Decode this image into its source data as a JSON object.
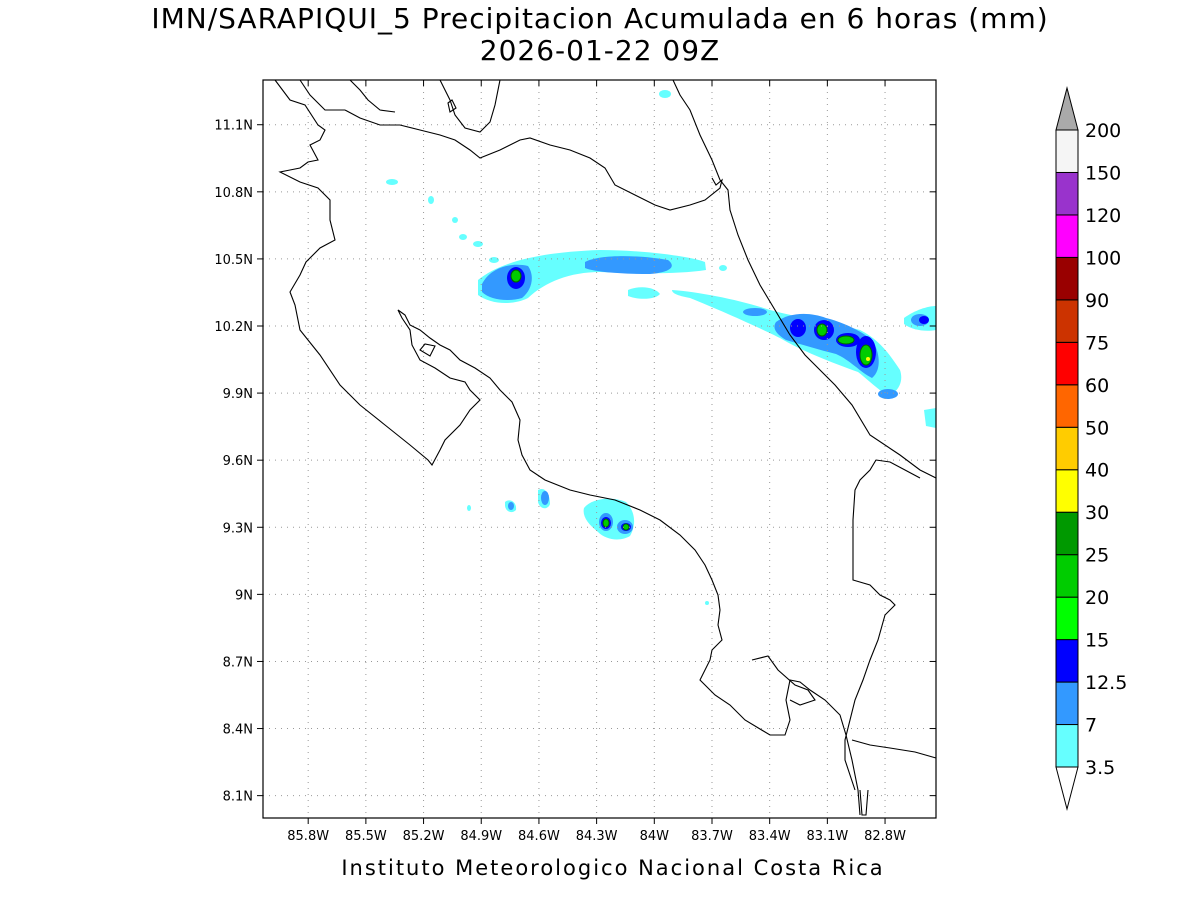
{
  "title": {
    "line1": "IMN/SARAPIQUI_5 Precipitacion Acumulada en 6 horas (mm)",
    "line2": "2026-01-22 09Z"
  },
  "footer": "Instituto Meteorologico Nacional Costa Rica",
  "map": {
    "lon_range": [
      -86.035,
      -82.535
    ],
    "lat_range": [
      8.0,
      11.3
    ],
    "x_ticks": [
      "85.8W",
      "85.5W",
      "85.2W",
      "84.9W",
      "84.6W",
      "84.3W",
      "84W",
      "83.7W",
      "83.4W",
      "83.1W",
      "82.8W"
    ],
    "y_ticks": [
      "8.1N",
      "8.4N",
      "8.7N",
      "9N",
      "9.3N",
      "9.6N",
      "9.9N",
      "10.2N",
      "10.5N",
      "10.8N",
      "11.1N"
    ]
  },
  "colorbar": {
    "labels": [
      "3.5",
      "7",
      "12.5",
      "15",
      "20",
      "25",
      "30",
      "40",
      "50",
      "60",
      "75",
      "90",
      "100",
      "120",
      "150",
      "200"
    ],
    "colors": [
      "#66ffff",
      "#3399ff",
      "#0000ff",
      "#00ff00",
      "#00cc00",
      "#009900",
      "#ffff00",
      "#ffcc00",
      "#ff6600",
      "#ff0000",
      "#cc3300",
      "#990000",
      "#ff00ff",
      "#9933cc",
      "#f5f5f5",
      "#aaaaaa"
    ]
  }
}
